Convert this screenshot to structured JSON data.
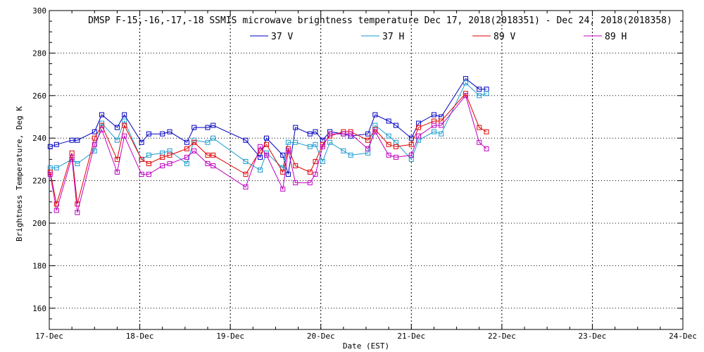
{
  "chart_data": {
    "type": "line",
    "title": "DMSP F-15,-16,-17,-18 SSMIS microwave brightness temperature Dec 17, 2018(2018351) - Dec 24, 2018(2018358)",
    "xlabel": "Date (EST)",
    "ylabel": "Brightness Temperature, Deg K",
    "xlim": [
      0,
      7
    ],
    "ylim": [
      150,
      300
    ],
    "x_ticks": [
      {
        "value": 0,
        "label": "17-Dec"
      },
      {
        "value": 1,
        "label": "18-Dec"
      },
      {
        "value": 2,
        "label": "19-Dec"
      },
      {
        "value": 3,
        "label": "20-Dec"
      },
      {
        "value": 4,
        "label": "21-Dec"
      },
      {
        "value": 5,
        "label": "22-Dec"
      },
      {
        "value": 6,
        "label": "23-Dec"
      },
      {
        "value": 7,
        "label": "24-Dec"
      }
    ],
    "y_ticks": [
      160,
      180,
      200,
      220,
      240,
      260,
      280,
      300
    ],
    "grid": true,
    "legend_position": "top-center",
    "series": [
      {
        "name": "37 V",
        "color": "#0000c0",
        "points": [
          [
            0.01,
            236
          ],
          [
            0.08,
            237
          ],
          [
            0.25,
            239
          ],
          [
            0.31,
            239
          ],
          [
            0.5,
            243
          ],
          [
            0.58,
            251
          ],
          [
            0.75,
            245
          ],
          [
            0.83,
            251
          ],
          [
            1.02,
            238
          ],
          [
            1.1,
            242
          ],
          [
            1.25,
            242
          ],
          [
            1.33,
            243
          ],
          [
            1.52,
            238
          ],
          [
            1.6,
            245
          ],
          [
            1.75,
            245
          ],
          [
            1.81,
            246
          ],
          [
            2.17,
            239
          ],
          [
            2.33,
            231
          ],
          [
            2.4,
            240
          ],
          [
            2.58,
            232
          ],
          [
            2.64,
            223
          ],
          [
            2.72,
            245
          ],
          [
            2.88,
            242
          ],
          [
            2.94,
            243
          ],
          [
            3.02,
            239
          ],
          [
            3.1,
            243
          ],
          [
            3.25,
            242
          ],
          [
            3.33,
            241
          ],
          [
            3.52,
            242
          ],
          [
            3.6,
            251
          ],
          [
            3.75,
            248
          ],
          [
            3.83,
            246
          ],
          [
            4.0,
            240
          ],
          [
            4.08,
            247
          ],
          [
            4.25,
            251
          ],
          [
            4.33,
            250
          ],
          [
            4.6,
            268
          ],
          [
            4.75,
            263
          ],
          [
            4.83,
            263
          ]
        ]
      },
      {
        "name": "37 H",
        "color": "#1a9bd0",
        "points": [
          [
            0.01,
            226
          ],
          [
            0.08,
            226
          ],
          [
            0.25,
            230
          ],
          [
            0.31,
            228
          ],
          [
            0.5,
            234
          ],
          [
            0.58,
            247
          ],
          [
            0.75,
            239
          ],
          [
            0.83,
            248
          ],
          [
            1.02,
            230
          ],
          [
            1.1,
            232
          ],
          [
            1.25,
            233
          ],
          [
            1.33,
            234
          ],
          [
            1.52,
            228
          ],
          [
            1.6,
            239
          ],
          [
            1.75,
            238
          ],
          [
            1.81,
            240
          ],
          [
            2.17,
            229
          ],
          [
            2.33,
            225
          ],
          [
            2.4,
            233
          ],
          [
            2.58,
            226
          ],
          [
            2.64,
            238
          ],
          [
            2.72,
            238
          ],
          [
            2.88,
            236
          ],
          [
            2.94,
            237
          ],
          [
            3.02,
            229
          ],
          [
            3.1,
            238
          ],
          [
            3.25,
            234
          ],
          [
            3.33,
            232
          ],
          [
            3.52,
            233
          ],
          [
            3.6,
            246
          ],
          [
            3.75,
            241
          ],
          [
            3.83,
            238
          ],
          [
            4.0,
            230
          ],
          [
            4.08,
            239
          ],
          [
            4.25,
            243
          ],
          [
            4.33,
            242
          ],
          [
            4.6,
            266
          ],
          [
            4.75,
            260
          ],
          [
            4.83,
            261
          ]
        ]
      },
      {
        "name": "89 V",
        "color": "#e00000",
        "points": [
          [
            0.01,
            224
          ],
          [
            0.08,
            209
          ],
          [
            0.25,
            233
          ],
          [
            0.31,
            209
          ],
          [
            0.5,
            240
          ],
          [
            0.58,
            246
          ],
          [
            0.75,
            230
          ],
          [
            0.83,
            246
          ],
          [
            1.02,
            230
          ],
          [
            1.1,
            228
          ],
          [
            1.25,
            231
          ],
          [
            1.33,
            232
          ],
          [
            1.52,
            235
          ],
          [
            1.6,
            238
          ],
          [
            1.75,
            232
          ],
          [
            1.81,
            232
          ],
          [
            2.17,
            223
          ],
          [
            2.33,
            234
          ],
          [
            2.4,
            237
          ],
          [
            2.58,
            224
          ],
          [
            2.64,
            235
          ],
          [
            2.72,
            227
          ],
          [
            2.88,
            224
          ],
          [
            2.94,
            229
          ],
          [
            3.02,
            237
          ],
          [
            3.1,
            241
          ],
          [
            3.25,
            243
          ],
          [
            3.33,
            243
          ],
          [
            3.52,
            239
          ],
          [
            3.6,
            244
          ],
          [
            3.75,
            237
          ],
          [
            3.83,
            236
          ],
          [
            4.0,
            237
          ],
          [
            4.08,
            245
          ],
          [
            4.25,
            248
          ],
          [
            4.33,
            248
          ],
          [
            4.6,
            261
          ],
          [
            4.75,
            245
          ],
          [
            4.83,
            243
          ]
        ]
      },
      {
        "name": "89 H",
        "color": "#c000c0",
        "points": [
          [
            0.01,
            223
          ],
          [
            0.08,
            206
          ],
          [
            0.25,
            231
          ],
          [
            0.31,
            205
          ],
          [
            0.5,
            237
          ],
          [
            0.58,
            244
          ],
          [
            0.75,
            224
          ],
          [
            0.83,
            241
          ],
          [
            1.02,
            223
          ],
          [
            1.1,
            223
          ],
          [
            1.25,
            227
          ],
          [
            1.33,
            228
          ],
          [
            1.52,
            231
          ],
          [
            1.6,
            234
          ],
          [
            1.75,
            228
          ],
          [
            1.81,
            227
          ],
          [
            2.17,
            217
          ],
          [
            2.33,
            236
          ],
          [
            2.4,
            232
          ],
          [
            2.58,
            216
          ],
          [
            2.64,
            234
          ],
          [
            2.72,
            219
          ],
          [
            2.88,
            219
          ],
          [
            2.94,
            223
          ],
          [
            3.02,
            236
          ],
          [
            3.1,
            242
          ],
          [
            3.25,
            242
          ],
          [
            3.33,
            242
          ],
          [
            3.52,
            235
          ],
          [
            3.6,
            243
          ],
          [
            3.75,
            232
          ],
          [
            3.83,
            231
          ],
          [
            4.0,
            232
          ],
          [
            4.08,
            241
          ],
          [
            4.25,
            246
          ],
          [
            4.33,
            246
          ],
          [
            4.6,
            260
          ],
          [
            4.75,
            238
          ],
          [
            4.83,
            235
          ]
        ]
      }
    ]
  }
}
